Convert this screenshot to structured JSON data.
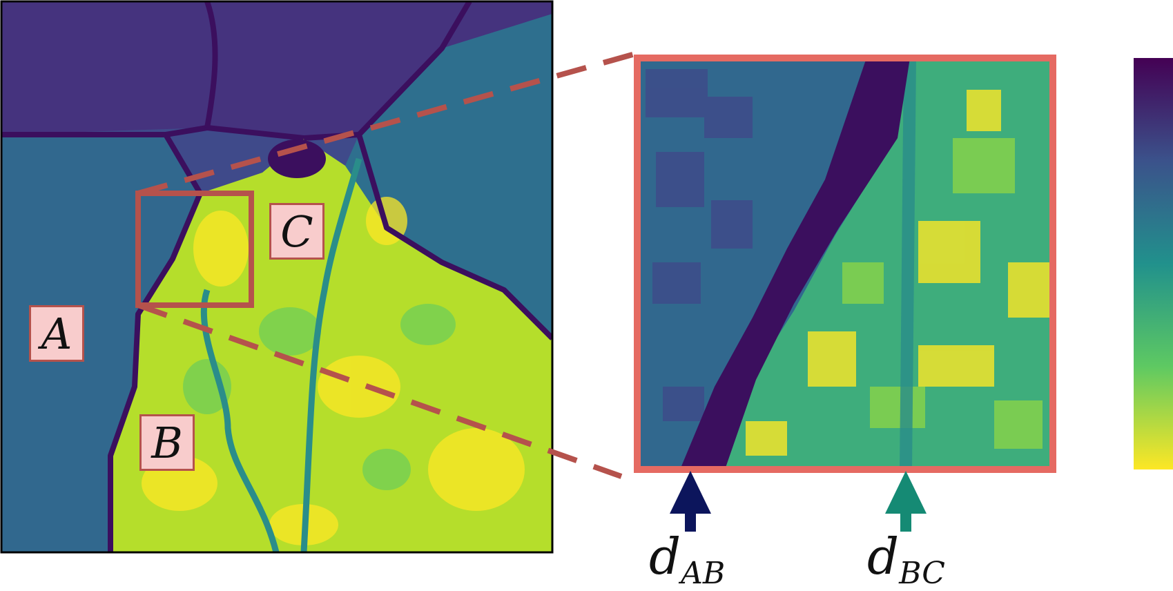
{
  "figure": {
    "regions": [
      {
        "id": "A",
        "label": "A"
      },
      {
        "id": "B",
        "label": "B"
      },
      {
        "id": "C",
        "label": "C"
      }
    ],
    "distances": [
      {
        "id": "dAB",
        "base": "d",
        "subscript": "AB",
        "arrow_color": "#0c155c"
      },
      {
        "id": "dBC",
        "base": "d",
        "subscript": "BC",
        "arrow_color": "#158a74"
      }
    ],
    "colors": {
      "zoom_frame": "#e56a62",
      "callout_lines": "#b5524c",
      "label_fill": "#f8cccc",
      "colormap": [
        "#440154",
        "#3b528b",
        "#21918c",
        "#5ec962",
        "#fde725"
      ]
    }
  }
}
